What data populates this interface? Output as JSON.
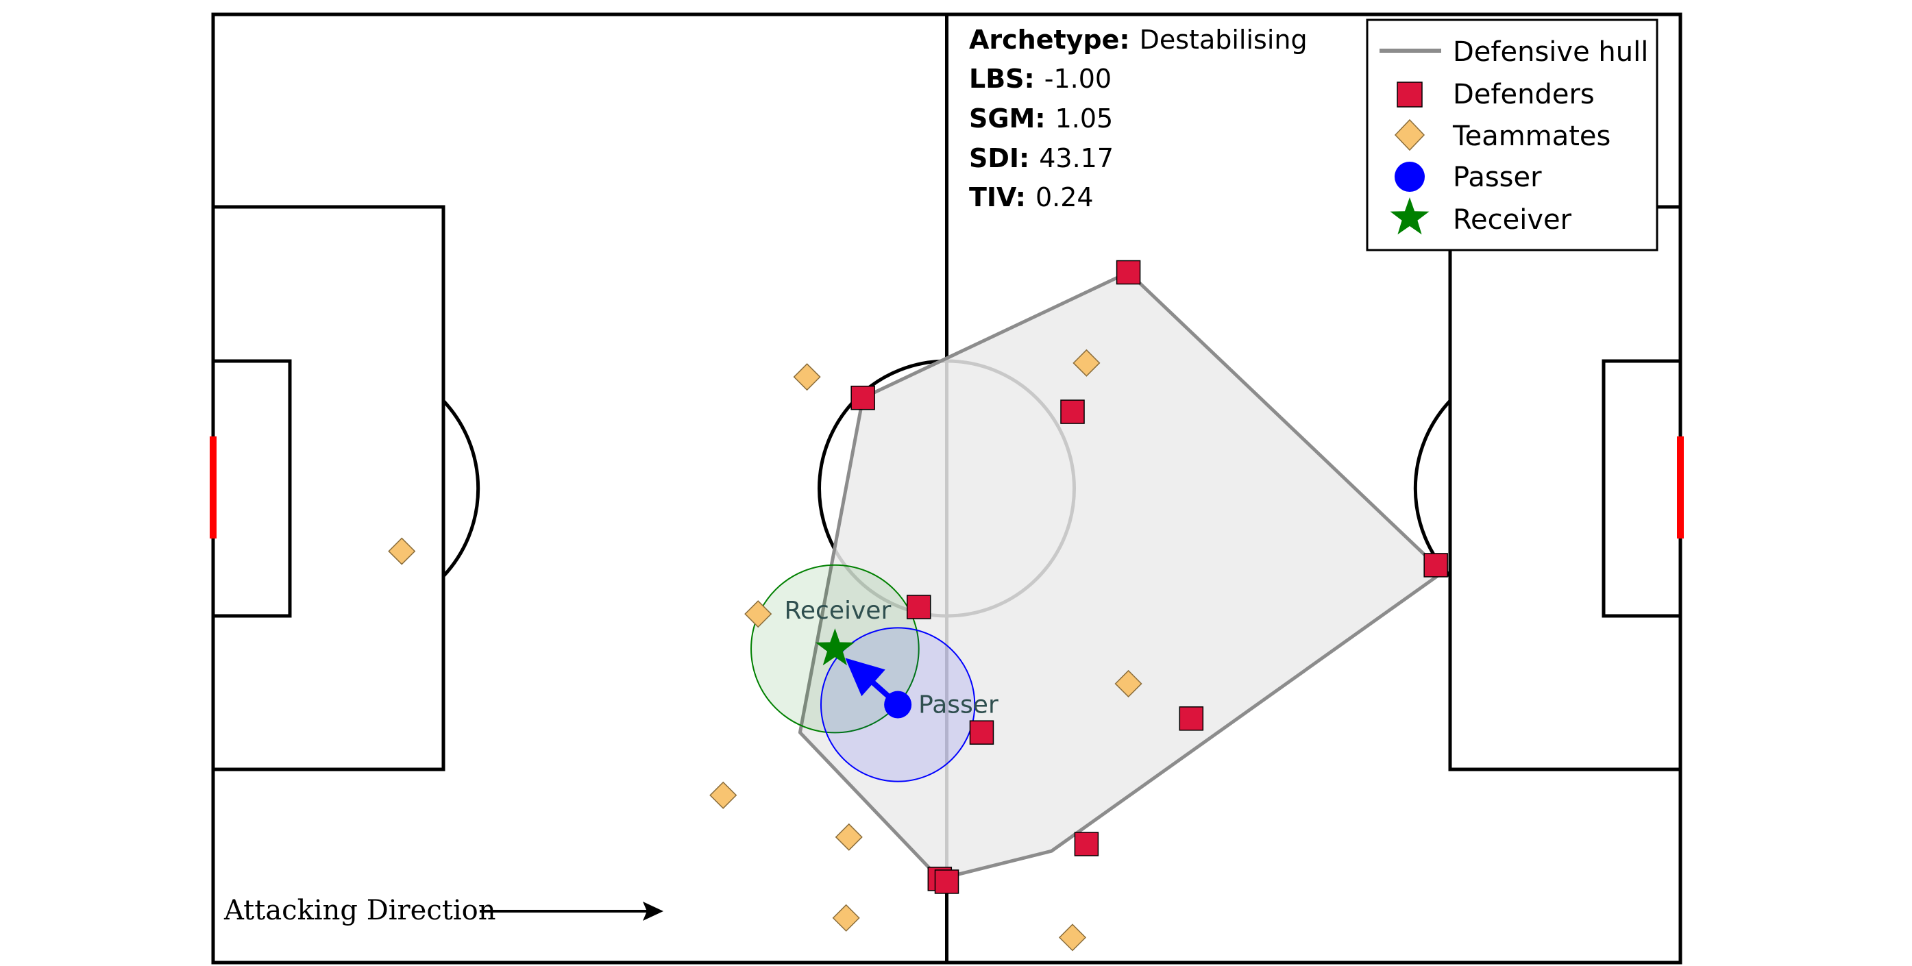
{
  "metrics": {
    "archetype_label": "Archetype:",
    "archetype_value": "Destabilising",
    "lbs_label": "LBS:",
    "lbs_value": "-1.00",
    "sgm_label": "SGM:",
    "sgm_value": "1.05",
    "sdi_label": "SDI:",
    "sdi_value": "43.17",
    "tiv_label": "TIV:",
    "tiv_value": "0.24"
  },
  "legend": {
    "hull": "Defensive hull",
    "defenders": "Defenders",
    "teammates": "Teammates",
    "passer": "Passer",
    "receiver": "Receiver"
  },
  "annotations": {
    "receiver_label": "Receiver",
    "passer_label": "Passer",
    "attacking_direction": "Attacking Direction"
  },
  "colors": {
    "defender": "#dc143c",
    "teammate": "#f8c471",
    "passer": "#0000ff",
    "receiver": "#008000",
    "hull_fill": "#ebebeb",
    "hull_line": "#8c8c8c",
    "goal": "#ff0000"
  },
  "chart_data": {
    "type": "scatter",
    "pitch": {
      "length": 105,
      "width": 68
    },
    "defenders": [
      [
        65.5,
        49.5
      ],
      [
        46.5,
        40.5
      ],
      [
        61.5,
        39.5
      ],
      [
        87.5,
        28.5
      ],
      [
        50.5,
        25.5
      ],
      [
        55,
        16.5
      ],
      [
        70,
        17.5
      ],
      [
        62.5,
        8.5
      ],
      [
        52,
        6
      ],
      [
        52.5,
        5.8
      ]
    ],
    "teammates": [
      [
        13.5,
        29.5
      ],
      [
        42.5,
        42
      ],
      [
        62.5,
        43
      ],
      [
        39,
        25
      ],
      [
        65.5,
        20
      ],
      [
        36.5,
        12
      ],
      [
        45.5,
        9
      ],
      [
        45.3,
        3.2
      ],
      [
        61.5,
        1.8
      ]
    ],
    "hull": [
      [
        65.5,
        49.5
      ],
      [
        88,
        28
      ],
      [
        60,
        8
      ],
      [
        52,
        6
      ],
      [
        42,
        16.5
      ],
      [
        46.5,
        40.5
      ]
    ],
    "passer": {
      "x": 49,
      "y": 18.5
    },
    "receiver": {
      "x": 44.5,
      "y": 22.5
    },
    "passer_radius": 5.5,
    "receiver_radius": 6
  }
}
